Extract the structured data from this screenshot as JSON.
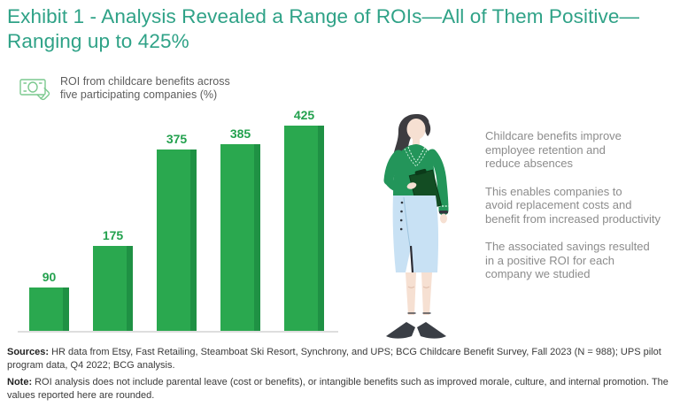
{
  "exhibit": {
    "title_lines": [
      "Exhibit 1 - Analysis Revealed a Range of ROIs—All of Them Positive—",
      "Ranging up to 425%"
    ]
  },
  "legend": {
    "icon": "banknote-in-hand-icon",
    "label_lines": [
      "ROI from childcare benefits across",
      "five participating companies (%)"
    ]
  },
  "chart_data": {
    "type": "bar",
    "categories": [
      "",
      "",
      "",
      "",
      ""
    ],
    "values": [
      90,
      175,
      375,
      385,
      425
    ],
    "data_labels": [
      "90",
      "175",
      "375",
      "385",
      "425"
    ],
    "title": "",
    "xlabel": "",
    "ylabel": "",
    "ylim": [
      0,
      460
    ],
    "grid": false,
    "legend": "ROI from childcare benefits across five participating companies (%)",
    "bar_color": "#2aa84f",
    "bar_shade_color": "#1f9144",
    "label_color": "#23a14e",
    "baseline_color": "#dedede"
  },
  "annotations": {
    "paragraphs": [
      [
        "Childcare benefits improve",
        "employee retention and",
        "reduce absences"
      ],
      [
        "This enables companies to",
        "avoid replacement costs and",
        "benefit from increased productivity"
      ],
      [
        "The associated savings resulted",
        "in a positive ROI for each",
        "company we studied"
      ]
    ]
  },
  "footer": {
    "sources_label": "Sources:",
    "sources_text": "HR data from Etsy, Fast Retailing, Steamboat Ski Resort, Synchrony, and UPS; BCG Childcare Benefit Survey, Fall 2023 (N = 988); UPS pilot program data, Q4 2022; BCG analysis.",
    "note_label": "Note:",
    "note_text": "ROI analysis does not include parental leave (cost or benefits), or intangible benefits such as improved morale, culture, and internal promotion. The values reported here are rounded."
  },
  "colors": {
    "title": "#2fa287",
    "legend_text": "#5d5d5d",
    "annotation_text": "#8c8c8c",
    "footer_text": "#3a3a3a",
    "icon_stroke": "#7cc98f"
  }
}
